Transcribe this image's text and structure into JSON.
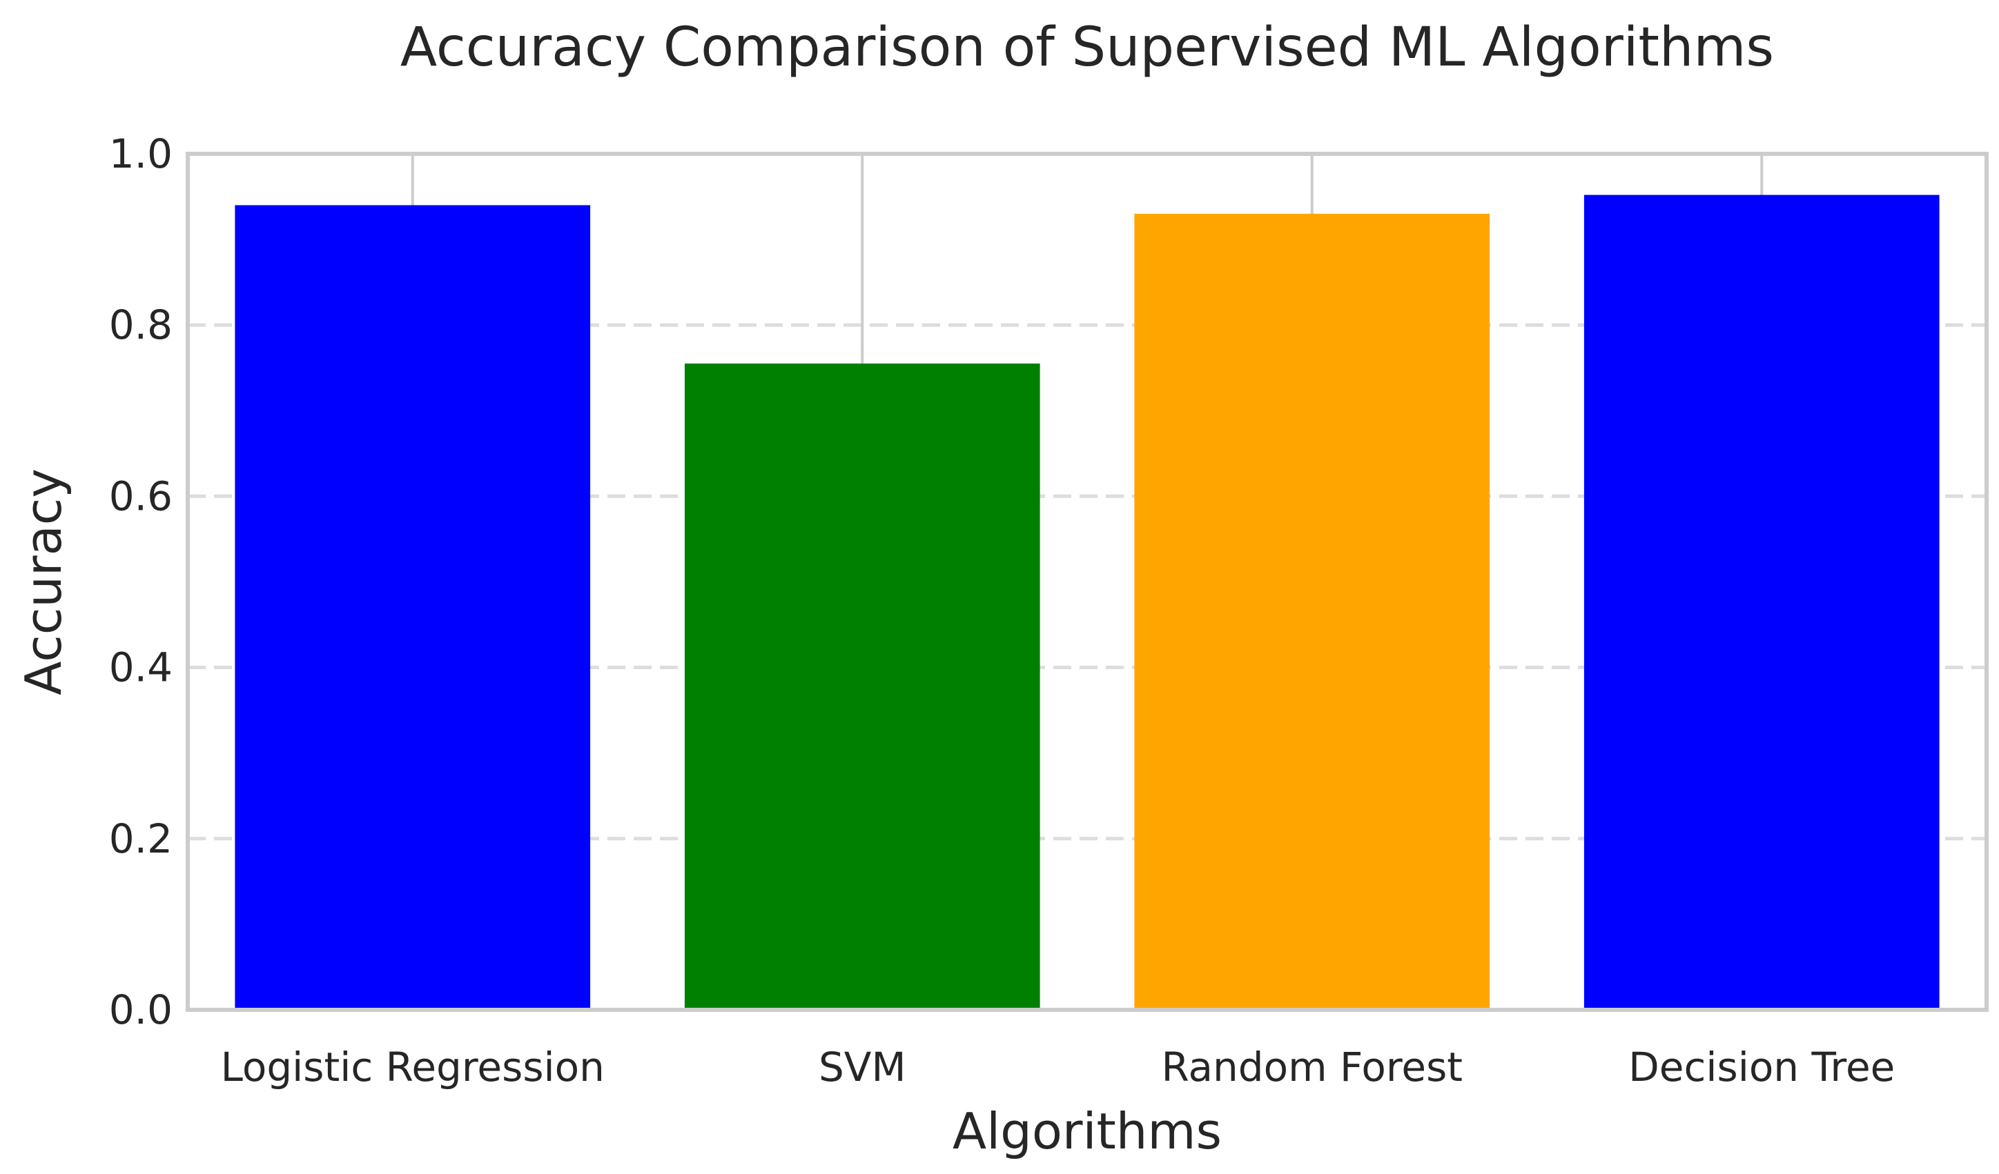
{
  "chart_data": {
    "type": "bar",
    "title": "Accuracy Comparison of Supervised ML Algorithms",
    "xlabel": "Algorithms",
    "ylabel": "Accuracy",
    "categories": [
      "Logistic Regression",
      "SVM",
      "Random Forest",
      "Decision Tree"
    ],
    "values": [
      0.94,
      0.755,
      0.93,
      0.952
    ],
    "colors": [
      "#0000ff",
      "#008000",
      "#ffa500",
      "#0000ff"
    ],
    "ylim": [
      0,
      1.0
    ],
    "yticks": [
      0.0,
      0.2,
      0.4,
      0.6,
      0.8,
      1.0
    ],
    "ytick_labels": [
      "0.0",
      "0.2",
      "0.4",
      "0.6",
      "0.8",
      "1.0"
    ],
    "grid": "horizontal-dashed",
    "legend": "none"
  },
  "style": {
    "spine_color": "#cccccc",
    "grid_color": "#dddddd",
    "text_color": "#262626"
  }
}
